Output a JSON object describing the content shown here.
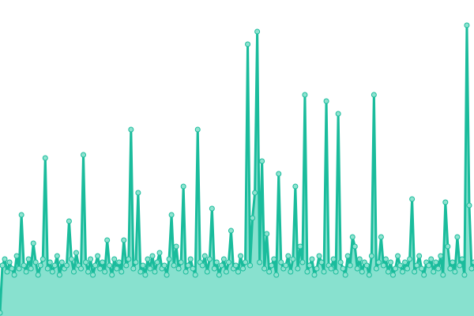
{
  "chart_data": {
    "type": "area",
    "title": "",
    "xlabel": "",
    "ylabel": "",
    "grid": false,
    "axes_visible": false,
    "ylim": [
      0,
      100
    ],
    "colors": {
      "line": "#1abc9c",
      "area": "#88e1cf",
      "point_fill": "#8fe3d0",
      "point_stroke": "#1abc9c"
    },
    "values": [
      1,
      16,
      18,
      14,
      17,
      15,
      13,
      19,
      15,
      32,
      16,
      14,
      18,
      15,
      23,
      17,
      13,
      16,
      18,
      50,
      15,
      17,
      14,
      16,
      19,
      13,
      17,
      15,
      16,
      30,
      18,
      14,
      20,
      16,
      15,
      51,
      17,
      14,
      18,
      13,
      16,
      19,
      15,
      17,
      14,
      24,
      16,
      13,
      18,
      15,
      17,
      14,
      24,
      16,
      18,
      59,
      15,
      17,
      39,
      14,
      16,
      13,
      18,
      15,
      19,
      14,
      17,
      20,
      15,
      16,
      13,
      18,
      32,
      16,
      22,
      15,
      17,
      41,
      14,
      16,
      18,
      15,
      13,
      59,
      17,
      16,
      19,
      14,
      18,
      34,
      15,
      17,
      13,
      16,
      18,
      14,
      17,
      27,
      15,
      16,
      14,
      19,
      15,
      17,
      86,
      16,
      31,
      39,
      90,
      17,
      49,
      15,
      26,
      14,
      16,
      18,
      13,
      45,
      17,
      15,
      16,
      19,
      14,
      18,
      41,
      15,
      22,
      17,
      70,
      14,
      16,
      18,
      13,
      15,
      19,
      17,
      14,
      68,
      16,
      15,
      18,
      14,
      64,
      17,
      15,
      13,
      19,
      16,
      25,
      22,
      15,
      18,
      14,
      17,
      16,
      13,
      19,
      70,
      15,
      17,
      25,
      16,
      18,
      14,
      17,
      13,
      15,
      19,
      16,
      14,
      17,
      15,
      18,
      37,
      14,
      16,
      19,
      15,
      13,
      17,
      16,
      18,
      14,
      17,
      15,
      19,
      13,
      36,
      22,
      15,
      17,
      14,
      25,
      16,
      18,
      13,
      92,
      35,
      15,
      17
    ]
  }
}
